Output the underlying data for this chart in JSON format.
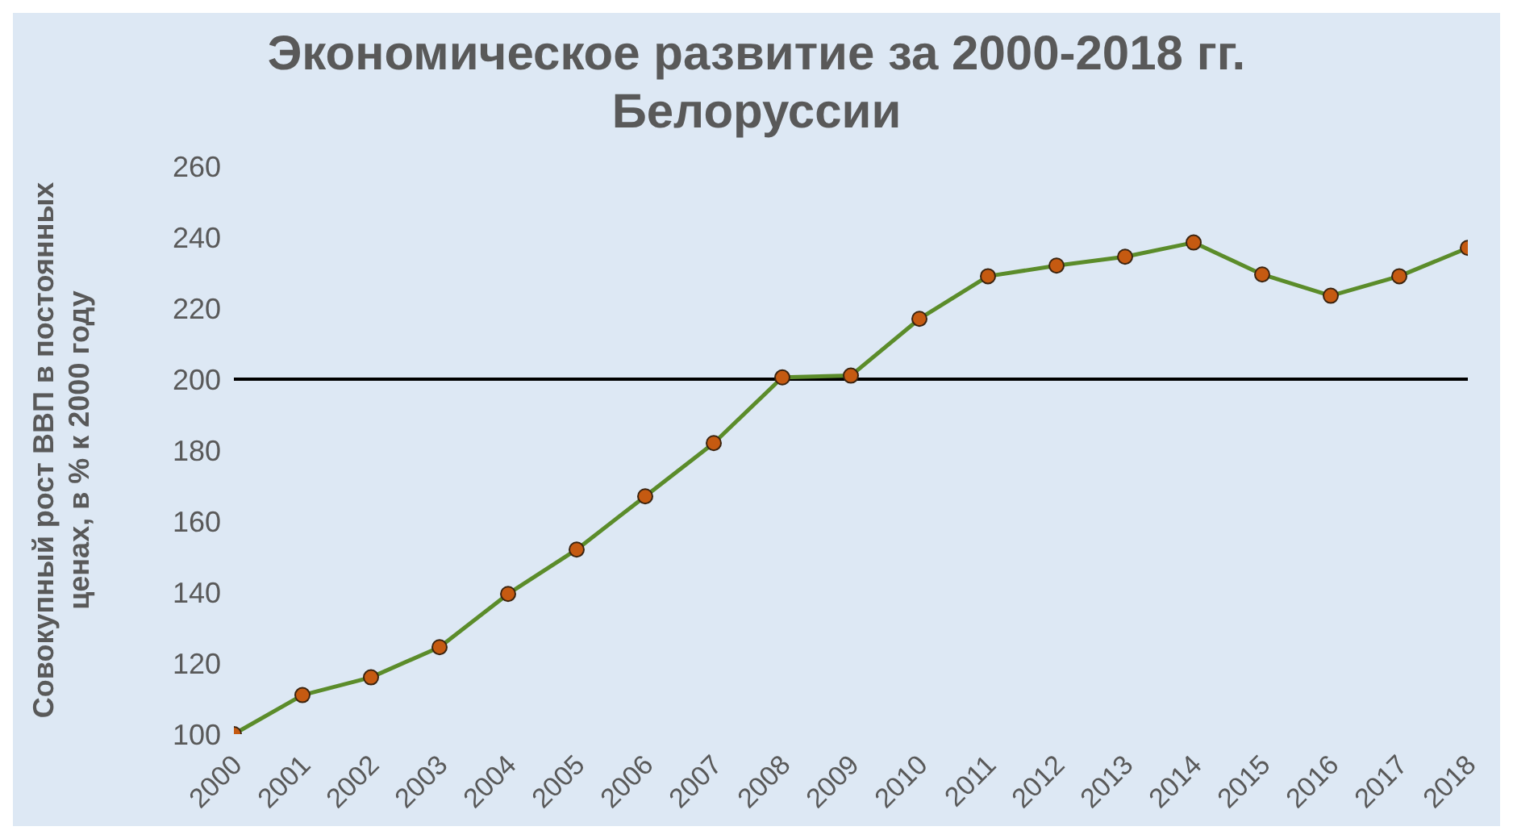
{
  "chart_data": {
    "type": "line",
    "title": "Экономическое развитие за 2000-2018 гг. Белоруссии",
    "ylabel": "Совокупный рост ВВП в постоянных ценах, в % к 2000 году",
    "categories": [
      "2000",
      "2001",
      "2002",
      "2003",
      "2004",
      "2005",
      "2006",
      "2007",
      "2008",
      "2009",
      "2010",
      "2011",
      "2012",
      "2013",
      "2014",
      "2015",
      "2016",
      "2017",
      "2018"
    ],
    "series": [
      {
        "color": "#5b8c2a",
        "values": [
          100,
          111,
          116,
          124.5,
          139.5,
          152,
          167,
          182,
          200.5,
          201,
          217,
          229,
          232,
          234.5,
          238.5,
          229.5,
          223.5,
          229,
          237
        ]
      }
    ],
    "ylim": [
      100,
      260
    ],
    "yticks": [
      100,
      120,
      140,
      160,
      180,
      200,
      220,
      240,
      260
    ],
    "grid": false,
    "legend": false,
    "marker": "circle",
    "line_style": "solid",
    "ref_lines": [
      {
        "axis": "y",
        "value": 200,
        "color": "#000000",
        "line_style": "solid"
      }
    ]
  }
}
